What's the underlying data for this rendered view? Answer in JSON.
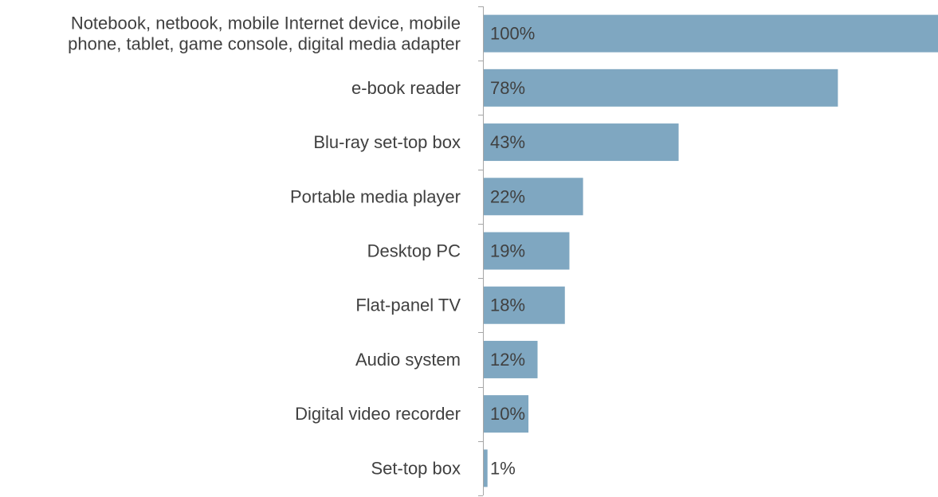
{
  "chart_data": {
    "type": "bar",
    "orientation": "horizontal",
    "title": "",
    "xlabel": "",
    "ylabel": "",
    "xlim": [
      0,
      100
    ],
    "grid": false,
    "bar_color": "#7fa7c1",
    "axis_color": "#a6a6a6",
    "text_color": "#404040",
    "categories": [
      [
        "Notebook, netbook, mobile Internet device, mobile",
        "phone, tablet, game console, digital media adapter"
      ],
      [
        "e-book reader"
      ],
      [
        "Blu-ray set-top box"
      ],
      [
        "Portable media player"
      ],
      [
        "Desktop PC"
      ],
      [
        "Flat-panel TV"
      ],
      [
        "Audio system"
      ],
      [
        "Digital video recorder"
      ],
      [
        "Set-top box"
      ]
    ],
    "values": [
      100,
      78,
      43,
      22,
      19,
      18,
      12,
      10,
      1
    ],
    "value_labels": [
      "100%",
      "78%",
      "43%",
      "22%",
      "19%",
      "18%",
      "12%",
      "10%",
      "1%"
    ]
  }
}
